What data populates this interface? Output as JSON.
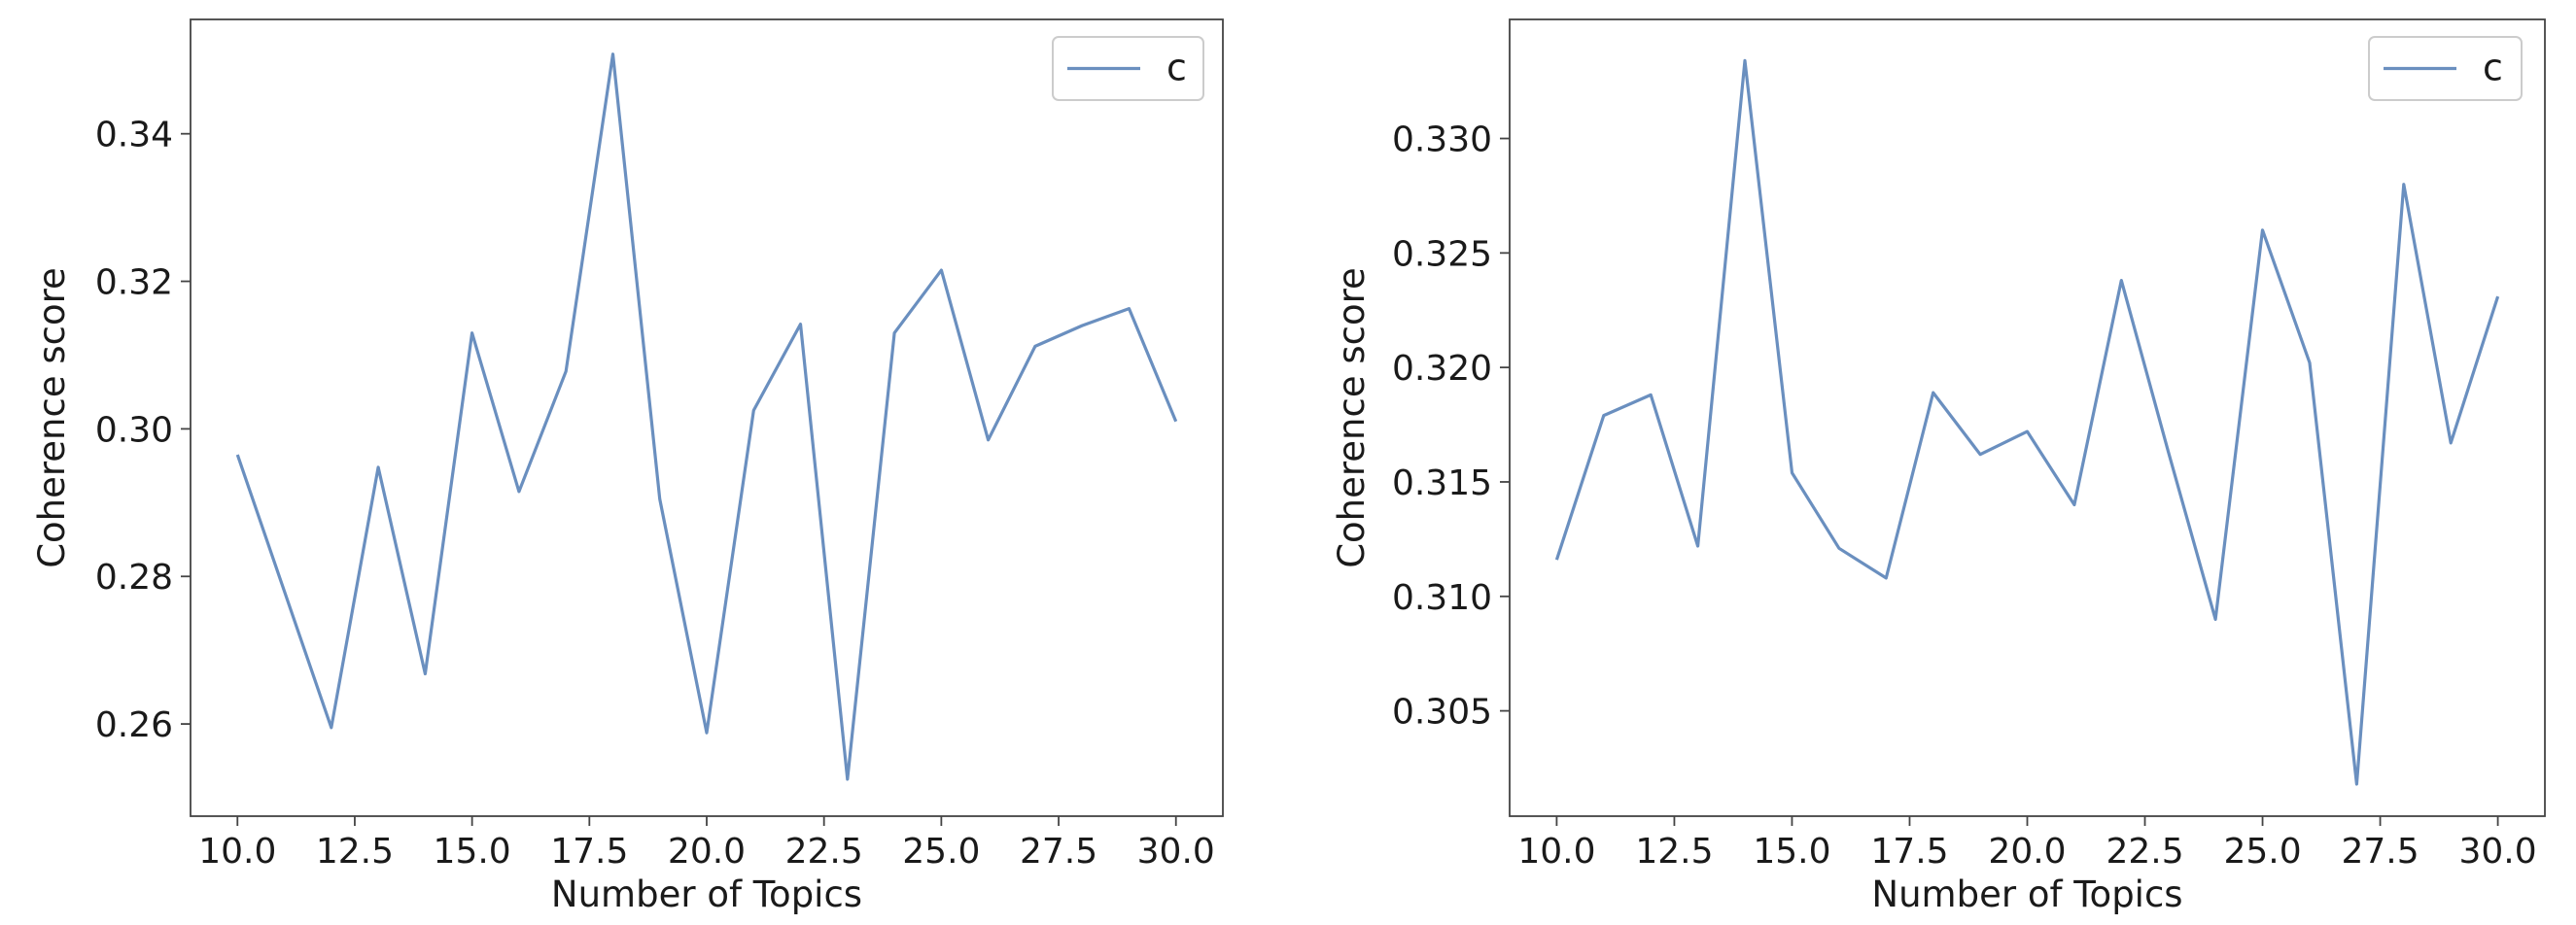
{
  "colors": {
    "line": "#6a8fbf",
    "axes": "#444444",
    "legend_border": "#cccccc"
  },
  "chart_data": [
    {
      "type": "line",
      "xlabel": "Number of Topics",
      "ylabel": "Coherence score",
      "xlim": [
        9.0,
        31.0
      ],
      "ylim": [
        0.2475,
        0.3555
      ],
      "xticks": [
        10.0,
        12.5,
        15.0,
        17.5,
        20.0,
        22.5,
        25.0,
        27.5,
        30.0
      ],
      "xtick_labels": [
        "10.0",
        "12.5",
        "15.0",
        "17.5",
        "20.0",
        "22.5",
        "25.0",
        "27.5",
        "30.0"
      ],
      "yticks": [
        0.26,
        0.28,
        0.3,
        0.32,
        0.34
      ],
      "ytick_labels": [
        "0.26",
        "0.28",
        "0.30",
        "0.32",
        "0.34"
      ],
      "legend_position": "top-right",
      "grid": false,
      "series": [
        {
          "name": "c",
          "x": [
            10,
            11,
            12,
            13,
            14,
            15,
            16,
            17,
            18,
            19,
            20,
            21,
            22,
            23,
            24,
            25,
            26,
            27,
            28,
            29,
            30
          ],
          "y": [
            0.2965,
            0.278,
            0.2595,
            0.2948,
            0.2668,
            0.313,
            0.2915,
            0.3078,
            0.3508,
            0.2905,
            0.2588,
            0.3025,
            0.3142,
            0.2525,
            0.313,
            0.3215,
            0.2985,
            0.3112,
            0.314,
            0.3163,
            0.301
          ]
        }
      ]
    },
    {
      "type": "line",
      "xlabel": "Number of Topics",
      "ylabel": "Coherence score",
      "xlim": [
        9.0,
        31.0
      ],
      "ylim": [
        0.3004,
        0.3352
      ],
      "xticks": [
        10.0,
        12.5,
        15.0,
        17.5,
        20.0,
        22.5,
        25.0,
        27.5,
        30.0
      ],
      "xtick_labels": [
        "10.0",
        "12.5",
        "15.0",
        "17.5",
        "20.0",
        "22.5",
        "25.0",
        "27.5",
        "30.0"
      ],
      "yticks": [
        0.305,
        0.31,
        0.315,
        0.32,
        0.325,
        0.33
      ],
      "ytick_labels": [
        "0.305",
        "0.310",
        "0.315",
        "0.320",
        "0.325",
        "0.330"
      ],
      "legend_position": "top-right",
      "grid": false,
      "series": [
        {
          "name": "c",
          "x": [
            10,
            11,
            12,
            13,
            14,
            15,
            16,
            17,
            18,
            19,
            20,
            21,
            22,
            23,
            24,
            25,
            26,
            27,
            28,
            29,
            30
          ],
          "y": [
            0.3116,
            0.3179,
            0.3188,
            0.3122,
            0.3334,
            0.3154,
            0.3121,
            0.3108,
            0.3189,
            0.3162,
            0.3172,
            0.314,
            0.3238,
            0.3163,
            0.309,
            0.326,
            0.3202,
            0.3018,
            0.328,
            0.3167,
            0.3231
          ]
        }
      ]
    }
  ]
}
